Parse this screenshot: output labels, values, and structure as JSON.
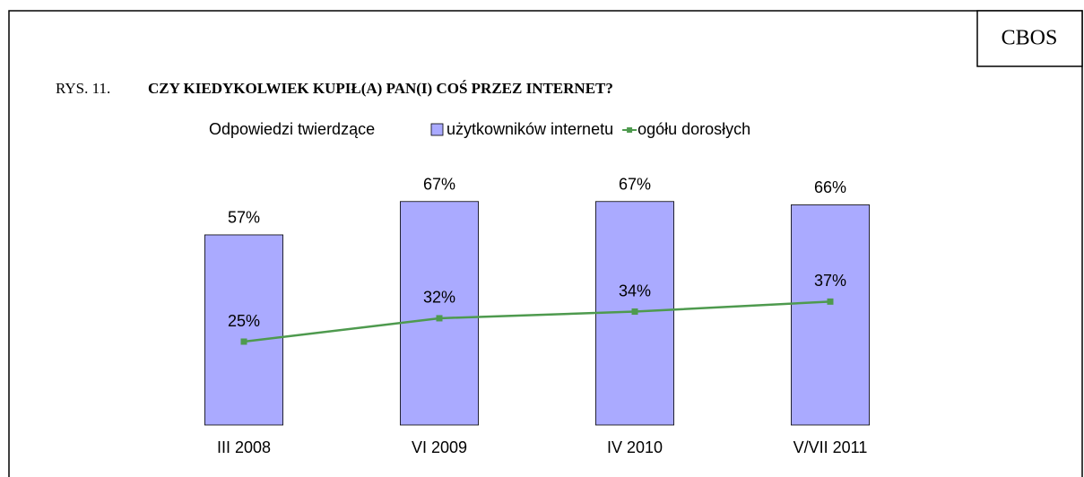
{
  "source": "CBOS",
  "chart_data": {
    "type": "bar",
    "figure_label": "RYS. 11.",
    "title": "CZY KIEDYKOLWIEK KUPIŁ(A) PAN(I) COŚ PRZEZ INTERNET?",
    "legend_title": "Odpowiedzi twierdzące",
    "categories": [
      "III 2008",
      "VI 2009",
      "IV 2010",
      "V/VII 2011"
    ],
    "series": [
      {
        "name": "użytkowników internetu",
        "type": "bar",
        "color": "#aaaaff",
        "values": [
          57,
          67,
          67,
          66
        ],
        "value_labels": [
          "57%",
          "67%",
          "67%",
          "66%"
        ]
      },
      {
        "name": "ogółu dorosłych",
        "type": "line",
        "color": "#4e9a4e",
        "values": [
          25,
          32,
          34,
          37
        ],
        "value_labels": [
          "25%",
          "32%",
          "34%",
          "37%"
        ]
      }
    ],
    "ylim": [
      0,
      100
    ],
    "legend": "top"
  }
}
